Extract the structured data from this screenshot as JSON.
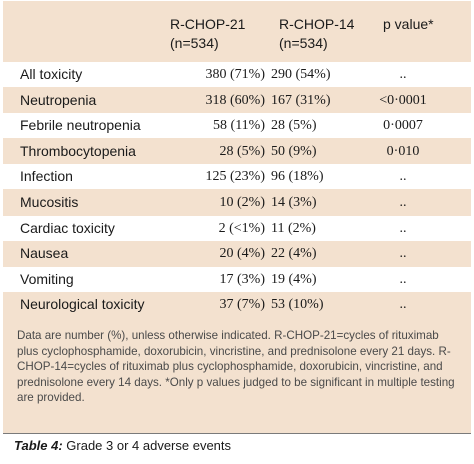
{
  "table": {
    "headers": [
      {
        "line1": "",
        "line2": ""
      },
      {
        "line1": "R-CHOP-21",
        "line2": "(n=534)"
      },
      {
        "line1": "R-CHOP-14",
        "line2": "(n=534)"
      },
      {
        "line1": "p value*",
        "line2": ""
      }
    ],
    "rows": [
      [
        "All toxicity",
        "380 (71%)",
        "290 (54%)",
        ".."
      ],
      [
        "Neutropenia",
        "318 (60%)",
        "167 (31%)",
        "<0·0001"
      ],
      [
        "Febrile neutropenia",
        "58 (11%)",
        "28 (5%)",
        "0·0007"
      ],
      [
        "Thrombocytopenia",
        "28 (5%)",
        "50 (9%)",
        "0·010"
      ],
      [
        "Infection",
        "125 (23%)",
        "96 (18%)",
        ".."
      ],
      [
        "Mucositis",
        "10 (2%)",
        "14 (3%)",
        ".."
      ],
      [
        "Cardiac toxicity",
        "2 (<1%)",
        "11 (2%)",
        ".."
      ],
      [
        "Nausea",
        "20 (4%)",
        "22 (4%)",
        ".."
      ],
      [
        "Vomiting",
        "17 (3%)",
        "19 (4%)",
        ".."
      ],
      [
        "Neurological toxicity",
        "37 (7%)",
        "53 (10%)",
        ".."
      ]
    ]
  },
  "footnote": "Data are number (%), unless otherwise indicated. R-CHOP-21=cycles of rituximab plus cyclophosphamide, doxorubicin, vincristine, and prednisolone every 21 days. R-CHOP-14=cycles of rituximab plus cyclophosphamide, doxorubicin, vincristine, and prednisolone every 14 days. *Only p values judged to be significant in multiple testing are provided.",
  "caption": {
    "label": "Table 4:",
    "text": " Grade 3 or 4 adverse events"
  },
  "colors": {
    "panel_background": "#f3e1cf",
    "row_band": "#ffffff",
    "text": "#1a1a1a",
    "footnote_text": "#4a4a4a"
  }
}
